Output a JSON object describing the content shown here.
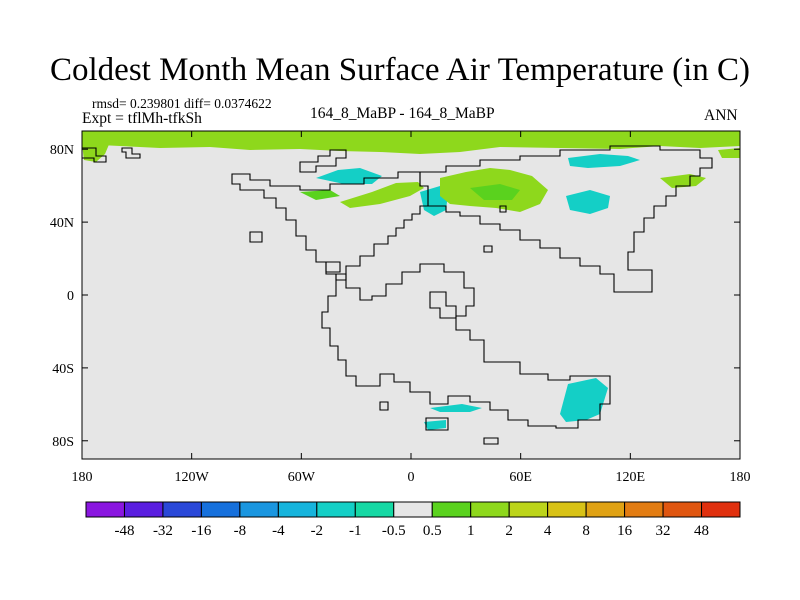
{
  "chart_data": {
    "type": "heatmap",
    "title": "Coldest Month Mean Surface Air Temperature (in C)",
    "stats_line": "rmsd= 0.239801 diff= 0.0374622",
    "experiment_line": "Expt = tflMh-tfkSh",
    "period_line": "164_8_MaBP - 164_8_MaBP",
    "season": "ANN",
    "projection": "cylindrical equidistant",
    "xlim": [
      -180,
      180
    ],
    "ylim": [
      -90,
      90
    ],
    "x_ticks": [
      {
        "value": -180,
        "label": "180"
      },
      {
        "value": -120,
        "label": "120W"
      },
      {
        "value": -60,
        "label": "60W"
      },
      {
        "value": 0,
        "label": "0"
      },
      {
        "value": 60,
        "label": "60E"
      },
      {
        "value": 120,
        "label": "120E"
      },
      {
        "value": 180,
        "label": "180"
      }
    ],
    "y_ticks": [
      {
        "value": 80,
        "label": "80N"
      },
      {
        "value": 40,
        "label": "40N"
      },
      {
        "value": 0,
        "label": "0"
      },
      {
        "value": -40,
        "label": "40S"
      },
      {
        "value": -80,
        "label": "80S"
      }
    ],
    "colorbar": {
      "labels": [
        "-48",
        "-32",
        "-16",
        "-8",
        "-4",
        "-2",
        "-1",
        "-0.5",
        "0.5",
        "1",
        "2",
        "4",
        "8",
        "16",
        "32",
        "48"
      ],
      "colors": [
        "#8a16e0",
        "#5a1ee0",
        "#2a48d8",
        "#1670dc",
        "#1a96e0",
        "#16b4dc",
        "#14cfc6",
        "#16d8a4",
        "#e6e6e6",
        "#5ad21e",
        "#8ed81c",
        "#bcd41a",
        "#d8c216",
        "#e0a214",
        "#e27c12",
        "#e05610",
        "#e0300e"
      ]
    },
    "background_value_range": "-0.5 to 0.5",
    "regions": [
      {
        "name": "arctic-north-band",
        "lon": [
          -180,
          180
        ],
        "lat": [
          77,
          88
        ],
        "bin": "1 to 2"
      },
      {
        "name": "north-america-west",
        "lon": [
          -179,
          -165
        ],
        "lat": [
          72,
          80
        ],
        "bin": "1 to 2"
      },
      {
        "name": "north-atlantic",
        "lon": [
          -40,
          -3
        ],
        "lat": [
          50,
          60
        ],
        "bin": "1 to 2"
      },
      {
        "name": "greenland-sea",
        "lon": [
          -52,
          -17
        ],
        "lat": [
          63,
          67
        ],
        "bin": "-1 to -0.5"
      },
      {
        "name": "western-europe",
        "lon": [
          5,
          25
        ],
        "lat": [
          48,
          60
        ],
        "bin": "-1 to -0.5"
      },
      {
        "name": "central-eurasia",
        "lon": [
          15,
          68
        ],
        "lat": [
          47,
          72
        ],
        "bin": "1 to 2"
      },
      {
        "name": "siberia",
        "lon": [
          81,
          124
        ],
        "lat": [
          72,
          79
        ],
        "bin": "-1 to -0.5"
      },
      {
        "name": "east-asia",
        "lon": [
          83,
          110
        ],
        "lat": [
          42,
          55
        ],
        "bin": "-1 to -0.5"
      },
      {
        "name": "north-pacific",
        "lon": [
          125,
          155
        ],
        "lat": [
          58,
          67
        ],
        "bin": "1 to 2"
      },
      {
        "name": "southern-africa",
        "lon": [
          10,
          38
        ],
        "lat": [
          -62,
          -68
        ],
        "bin": "-1 to -0.5"
      },
      {
        "name": "antarctic-coast",
        "lon": [
          3,
          12
        ],
        "lat": [
          -71,
          -76
        ],
        "bin": "-1 to -0.5"
      },
      {
        "name": "australia",
        "lon": [
          82,
          108
        ],
        "lat": [
          -48,
          -70
        ],
        "bin": "-1 to -0.5"
      }
    ]
  }
}
